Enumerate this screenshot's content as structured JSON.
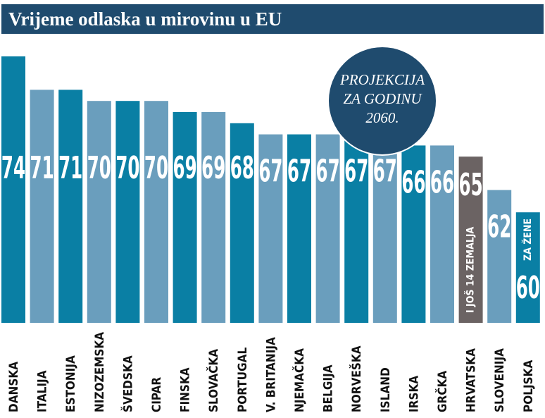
{
  "title": "Vrijeme odlaska u mirovinu u EU",
  "projection_note": [
    "PROJEKCIJA",
    "ZA GODINU",
    "2060."
  ],
  "colors": {
    "title_bg": "#1f4b6e",
    "dark_teal": "#0a7fa4",
    "light_blue": "#6a9ebd",
    "highlight_gray": "#6b6363",
    "circle": "#1f4b6e"
  },
  "chart_data": {
    "type": "bar",
    "title": "Vrijeme odlaska u mirovinu u EU",
    "categories": [
      "DANSKA",
      "ITALIJA",
      "ESTONIJA",
      "NIZOZEMSKA",
      "ŠVEDSKA",
      "CIPAR",
      "FINSKA",
      "SLOVAČKA",
      "PORTUGAL",
      "V. BRITANIJA",
      "NJEMAČKA",
      "BELGIJA",
      "NORVEŠKA",
      "ISLAND",
      "IRSKA",
      "GRČKA",
      "HRVATSKA",
      "SLOVENIJA",
      "POLJSKA"
    ],
    "values": [
      74,
      71,
      71,
      70,
      70,
      70,
      69,
      69,
      68,
      67,
      67,
      67,
      67,
      67,
      66,
      66,
      65,
      62,
      60
    ],
    "bar_colors": [
      "dark_teal",
      "light_blue",
      "dark_teal",
      "light_blue",
      "dark_teal",
      "light_blue",
      "dark_teal",
      "light_blue",
      "dark_teal",
      "light_blue",
      "dark_teal",
      "light_blue",
      "dark_teal",
      "light_blue",
      "dark_teal",
      "light_blue",
      "highlight_gray",
      "light_blue",
      "dark_teal"
    ],
    "bar_notes": {
      "HRVATSKA": "I JOŠ 14 ZEMALJA",
      "POLJSKA": "ZA ŽENE"
    },
    "xlabel": "",
    "ylabel": "",
    "grid": false
  }
}
